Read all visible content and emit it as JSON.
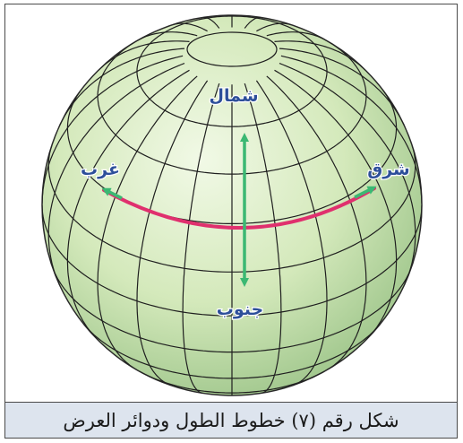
{
  "caption": "شكل رقم (٧) خطوط الطول ودوائر العرض",
  "labels": {
    "north": "شمال",
    "south": "جنوب",
    "east": "شرق",
    "west": "غرب"
  },
  "colors": {
    "globe_light": "#eef7e0",
    "globe_mid": "#cfe6b4",
    "globe_dark": "#9cc489",
    "grid_lines": "#1f1f1f",
    "equator_arc": "#e0306e",
    "arrow": "#3bb873",
    "label_text": "#2d4f9a",
    "caption_background": "#dde4ee"
  }
}
